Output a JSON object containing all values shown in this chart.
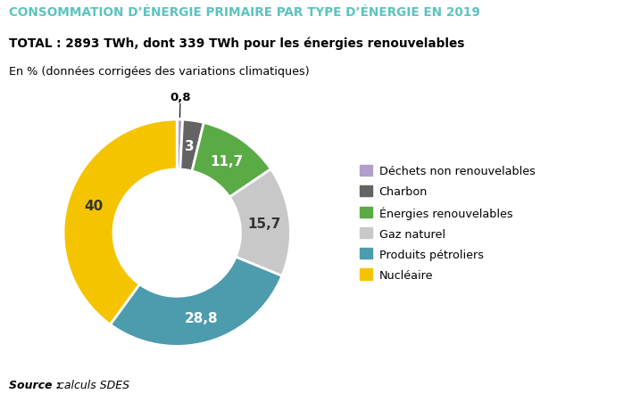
{
  "title_main": "CONSOMMATION D’ÉNERGIE PRIMAIRE PAR TYPE D’ÉNERGIE EN 2019",
  "title_main_color": "#5bc4bf",
  "subtitle1_bold": "TOTAL : 2893 TWh, dont 339 TWh pour les énergies renouvelables",
  "subtitle2": "En % (données corrigées des variations climatiques)",
  "source_bold": "Source :",
  "source_italic": " calculs SDES",
  "labels": [
    "Déchets non renouvelables",
    "Charbon",
    "Énergies renouvelables",
    "Gaz naturel",
    "Produits pétroliers",
    "Nucléaire"
  ],
  "values": [
    0.8,
    3.0,
    11.7,
    15.7,
    28.8,
    40.0
  ],
  "colors": [
    "#b09fca",
    "#636363",
    "#5aaa45",
    "#c8c8c8",
    "#4c9cae",
    "#f5c400"
  ],
  "label_texts": [
    "0,8",
    "3",
    "11,7",
    "15,7",
    "28,8",
    "40"
  ],
  "label_colors": [
    "#000000",
    "#ffffff",
    "#ffffff",
    "#333333",
    "#ffffff",
    "#333333"
  ],
  "background_color": "#ffffff"
}
